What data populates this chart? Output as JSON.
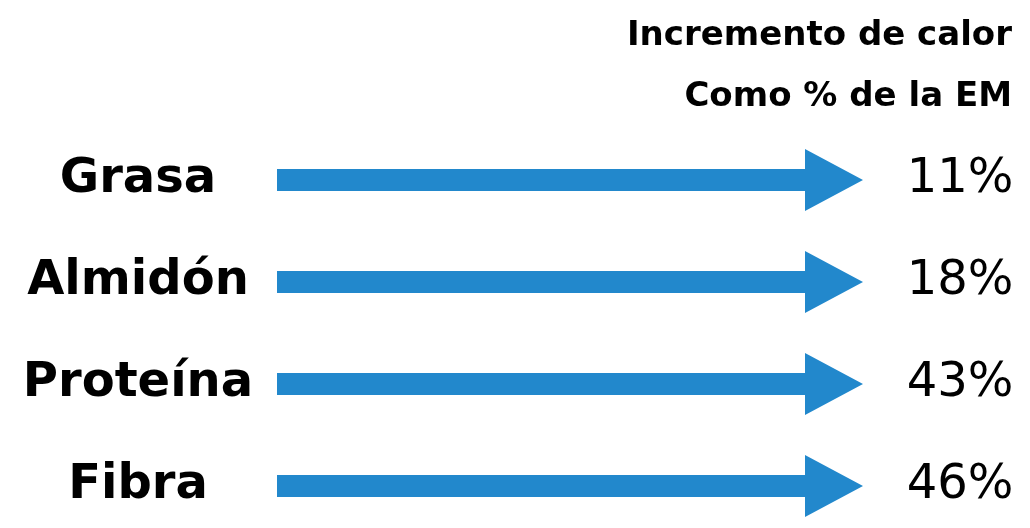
{
  "chart_data": {
    "type": "other",
    "title": "Incremento de calor",
    "subtitle": "Como % de la EM",
    "categories": [
      "Grasa",
      "Almidón",
      "Proteína",
      "Fibra"
    ],
    "values": [
      11,
      18,
      43,
      46
    ],
    "value_labels": [
      "11%",
      "18%",
      "43%",
      "46%"
    ],
    "color": "#2288cc"
  }
}
